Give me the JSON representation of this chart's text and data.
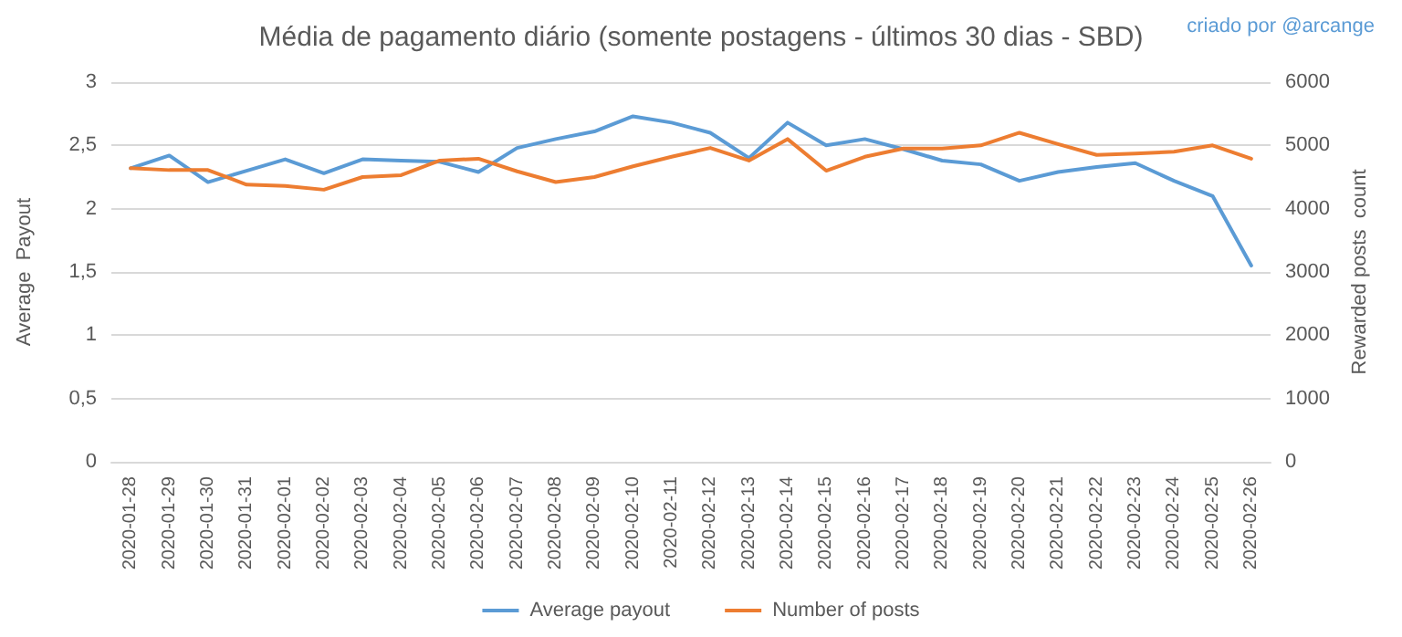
{
  "chart_data": {
    "type": "line",
    "title": "Média de pagamento diário (somente postagens - últimos 30 dias - SBD)",
    "annotations": [
      "criado por @arcange"
    ],
    "ylabel": "Average  Payout",
    "y2label": "Rewarded posts  count",
    "categories": [
      "2020-01-28",
      "2020-01-29",
      "2020-01-30",
      "2020-01-31",
      "2020-02-01",
      "2020-02-02",
      "2020-02-03",
      "2020-02-04",
      "2020-02-05",
      "2020-02-06",
      "2020-02-07",
      "2020-02-08",
      "2020-02-09",
      "2020-02-10",
      "2020-02-11",
      "2020-02-12",
      "2020-02-13",
      "2020-02-14",
      "2020-02-15",
      "2020-02-16",
      "2020-02-17",
      "2020-02-18",
      "2020-02-19",
      "2020-02-20",
      "2020-02-21",
      "2020-02-22",
      "2020-02-23",
      "2020-02-24",
      "2020-02-25",
      "2020-02-26"
    ],
    "series": [
      {
        "name": "Average payout",
        "color": "#5b9bd5",
        "values": [
          2.32,
          2.42,
          2.21,
          2.3,
          2.39,
          2.28,
          2.39,
          2.38,
          2.37,
          2.29,
          2.48,
          2.55,
          2.61,
          2.73,
          2.68,
          2.6,
          2.4,
          2.68,
          2.5,
          2.55,
          2.47,
          2.38,
          2.35,
          2.22,
          2.29,
          2.33,
          2.36,
          2.22,
          2.1,
          1.55
        ]
      },
      {
        "name": "Number of posts",
        "color": "#ed7d31",
        "axis": "y2",
        "values": [
          4640,
          4610,
          4610,
          4380,
          4360,
          4300,
          4500,
          4530,
          4760,
          4790,
          4590,
          4420,
          4500,
          4670,
          4820,
          4960,
          4760,
          5100,
          4600,
          4820,
          4950,
          4950,
          5000,
          5200,
          5020,
          4850,
          4870,
          4900,
          5000,
          4790
        ]
      }
    ],
    "ylim": [
      0,
      3
    ],
    "yticks": [
      0,
      {
        "value": 0.5,
        "label": "0,5"
      },
      1,
      {
        "value": 1.5,
        "label": "1,5"
      },
      2,
      {
        "value": 2.5,
        "label": "2,5"
      },
      3
    ],
    "y2lim": [
      0,
      6000
    ],
    "y2ticks": [
      0,
      1000,
      2000,
      3000,
      4000,
      5000,
      6000
    ],
    "grid": "y",
    "legend": "bottom",
    "marker": "none",
    "line_style": "solid"
  }
}
